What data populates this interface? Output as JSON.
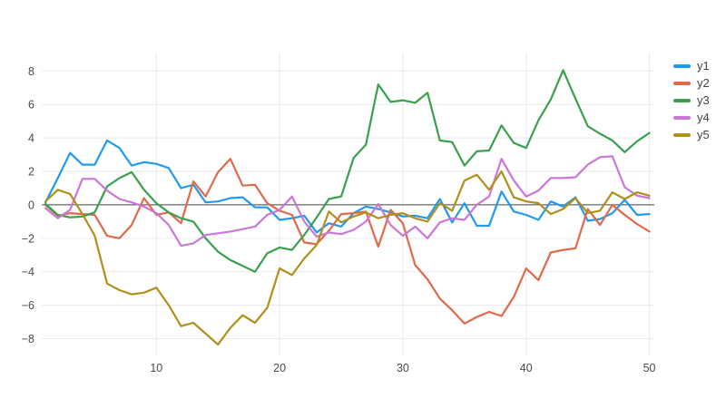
{
  "chart_data": {
    "type": "line",
    "title": "",
    "xlabel": "",
    "ylabel": "",
    "x_range": [
      0.7,
      50.4
    ],
    "y_range": [
      -9.0,
      9.1
    ],
    "grid": true,
    "zeroline": true,
    "legend_position": "right",
    "x_ticks": [
      10,
      20,
      30,
      40,
      50
    ],
    "x_tick_labels": [
      "10",
      "20",
      "30",
      "40",
      "50"
    ],
    "y_ticks": [
      8,
      6,
      4,
      2,
      0,
      -2,
      -4,
      -6,
      -8
    ],
    "y_tick_labels": [
      "8",
      "6",
      "4",
      "2",
      "0",
      "−2",
      "−4",
      "−6",
      "−8"
    ],
    "x": [
      1,
      2,
      3,
      4,
      5,
      6,
      7,
      8,
      9,
      10,
      11,
      12,
      13,
      14,
      15,
      16,
      17,
      18,
      19,
      20,
      21,
      22,
      23,
      24,
      25,
      26,
      27,
      28,
      29,
      30,
      31,
      32,
      33,
      34,
      35,
      36,
      37,
      38,
      39,
      40,
      41,
      42,
      43,
      44,
      45,
      46,
      47,
      48,
      49,
      50
    ],
    "series": [
      {
        "name": "y1",
        "color": "#1f9af0",
        "values": [
          0.15,
          1.6,
          3.1,
          2.4,
          2.4,
          3.85,
          3.4,
          2.35,
          2.55,
          2.45,
          2.2,
          1.0,
          1.2,
          0.15,
          0.2,
          0.4,
          0.45,
          -0.15,
          -0.15,
          -0.9,
          -0.8,
          -0.65,
          -1.65,
          -1.1,
          -1.3,
          -0.5,
          -0.1,
          -0.25,
          -0.45,
          -0.7,
          -0.65,
          -0.8,
          0.35,
          -1.05,
          0.1,
          -1.25,
          -1.25,
          0.8,
          -0.4,
          -0.6,
          -0.9,
          0.2,
          -0.1,
          0.45,
          -0.95,
          -0.85,
          -0.5,
          0.3,
          -0.6,
          -0.55
        ]
      },
      {
        "name": "y2",
        "color": "#e0694a",
        "values": [
          0.0,
          -0.65,
          -0.5,
          -0.55,
          -0.6,
          -1.85,
          -2.0,
          -1.2,
          0.4,
          -0.6,
          -0.45,
          -1.1,
          1.4,
          0.5,
          1.95,
          2.75,
          1.15,
          1.2,
          0.1,
          -0.35,
          -0.6,
          -2.25,
          -2.35,
          -1.55,
          -0.55,
          -0.5,
          -0.4,
          -2.5,
          -0.3,
          -1.1,
          -3.6,
          -4.45,
          -5.6,
          -6.3,
          -7.1,
          -6.7,
          -6.4,
          -6.65,
          -5.5,
          -3.8,
          -4.5,
          -2.85,
          -2.7,
          -2.6,
          -0.25,
          -1.2,
          0.0,
          -0.6,
          -1.15,
          -1.6
        ]
      },
      {
        "name": "y3",
        "color": "#38a04e",
        "values": [
          0.05,
          -0.6,
          -0.75,
          -0.7,
          -0.45,
          1.1,
          1.6,
          1.95,
          0.9,
          0.1,
          -0.45,
          -0.8,
          -1.0,
          -2.0,
          -2.8,
          -3.3,
          -3.65,
          -4.0,
          -2.9,
          -2.55,
          -2.7,
          -1.8,
          -0.75,
          0.35,
          0.5,
          2.8,
          3.6,
          7.2,
          6.15,
          6.25,
          6.1,
          6.7,
          3.85,
          3.75,
          2.35,
          3.2,
          3.25,
          4.75,
          3.7,
          3.4,
          5.05,
          6.3,
          8.05,
          6.35,
          4.7,
          4.25,
          3.85,
          3.15,
          3.8,
          4.3
        ]
      },
      {
        "name": "y4",
        "color": "#cb76d8",
        "values": [
          -0.2,
          -0.8,
          -0.3,
          1.55,
          1.55,
          0.85,
          0.35,
          0.15,
          -0.1,
          -0.5,
          -1.2,
          -2.45,
          -2.3,
          -1.8,
          -1.7,
          -1.6,
          -1.45,
          -1.3,
          -0.6,
          -0.3,
          0.5,
          -1.0,
          -1.9,
          -1.65,
          -1.75,
          -1.5,
          -1.0,
          0.05,
          -1.2,
          -1.85,
          -1.3,
          -2.0,
          -1.05,
          -0.8,
          -0.9,
          0.0,
          0.5,
          2.75,
          1.45,
          0.5,
          0.85,
          1.6,
          1.6,
          1.65,
          2.4,
          2.85,
          2.9,
          1.05,
          0.55,
          0.4
        ]
      },
      {
        "name": "y5",
        "color": "#b0901b",
        "values": [
          0.2,
          0.9,
          0.65,
          -0.55,
          -1.85,
          -4.7,
          -5.1,
          -5.35,
          -5.25,
          -4.95,
          -6.0,
          -7.25,
          -7.05,
          -7.7,
          -8.35,
          -7.35,
          -6.6,
          -7.05,
          -6.15,
          -3.8,
          -4.2,
          -3.2,
          -2.4,
          -0.4,
          -1.05,
          -0.7,
          -0.45,
          -0.8,
          -0.6,
          -0.5,
          -0.8,
          -1.0,
          0.1,
          -0.35,
          1.45,
          1.8,
          0.9,
          2.0,
          0.45,
          0.2,
          0.1,
          -0.55,
          -0.25,
          0.4,
          -0.5,
          -0.35,
          0.75,
          0.35,
          0.75,
          0.55
        ]
      }
    ]
  },
  "colors": {
    "background": "#ffffff",
    "grid": "#e9eaec",
    "zeroline": "#444444",
    "tick_text": "#4a4a4a",
    "legend_text": "#444444"
  }
}
